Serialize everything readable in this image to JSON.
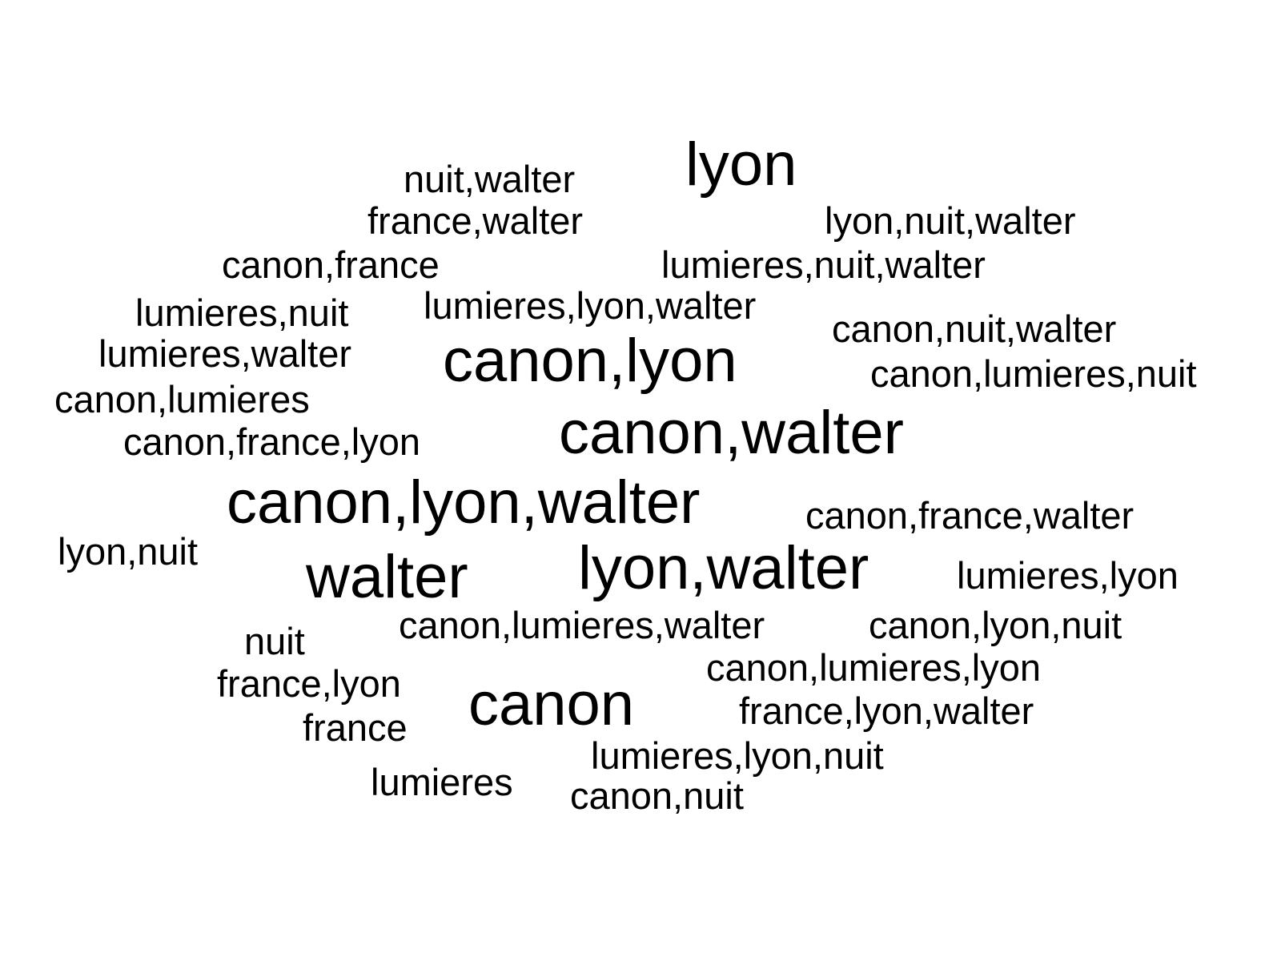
{
  "words": {
    "lyon": "lyon",
    "nuit_walter": "nuit,walter",
    "france_walter": "france,walter",
    "lyon_nuit_walter": "lyon,nuit,walter",
    "canon_france": "canon,france",
    "lumieres_nuit_walter": "lumieres,nuit,walter",
    "lumieres_nuit": "lumieres,nuit",
    "lumieres_lyon_walter": "lumieres,lyon,walter",
    "canon_nuit_walter": "canon,nuit,walter",
    "lumieres_walter": "lumieres,walter",
    "canon_lyon": "canon,lyon",
    "canon_lumieres_nuit": "canon,lumieres,nuit",
    "canon_lumieres": "canon,lumieres",
    "canon_walter": "canon,walter",
    "canon_france_lyon": "canon,france,lyon",
    "canon_lyon_walter": "canon,lyon,walter",
    "canon_france_walter": "canon,france,walter",
    "lyon_nuit": "lyon,nuit",
    "walter": "walter",
    "lyon_walter": "lyon,walter",
    "lumieres_lyon": "lumieres,lyon",
    "canon_lumieres_walter": "canon,lumieres,walter",
    "canon_lyon_nuit": "canon,lyon,nuit",
    "nuit": "nuit",
    "canon_lumieres_lyon": "canon,lumieres,lyon",
    "france_lyon": "france,lyon",
    "canon": "canon",
    "france_lyon_walter": "france,lyon,walter",
    "france": "france",
    "lumieres_lyon_nuit": "lumieres,lyon,nuit",
    "lumieres": "lumieres",
    "canon_nuit": "canon,nuit"
  }
}
